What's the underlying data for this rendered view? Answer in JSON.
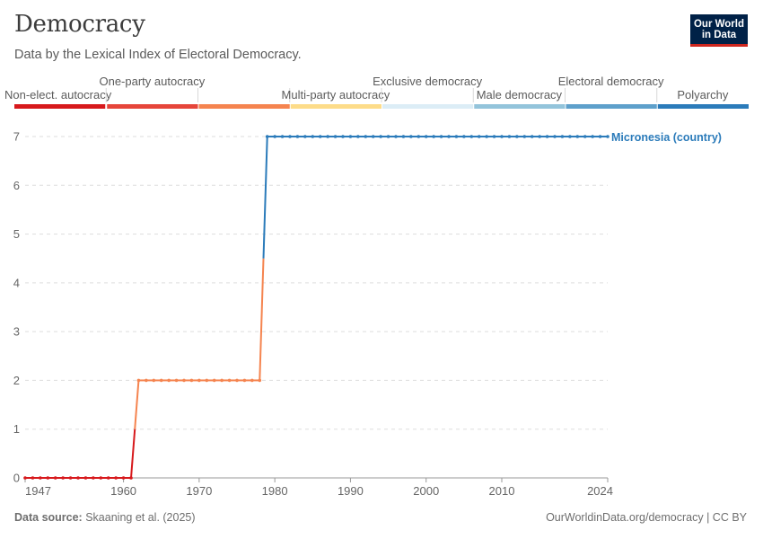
{
  "header": {
    "title": "Democracy",
    "subtitle": "Data by the Lexical Index of Electoral Democracy."
  },
  "logo": {
    "line1": "Our World",
    "line2": "in Data"
  },
  "footer": {
    "source_label": "Data source:",
    "source_text": "Skaaning et al. (2025)",
    "right_text": "OurWorldinData.org/democracy | CC BY"
  },
  "legend": {
    "categories": [
      {
        "label": "Non-elect. autocracy",
        "color": "#d7191c",
        "row": "lower"
      },
      {
        "label": "One-party autocracy",
        "color": "#e6453a",
        "row": "upper"
      },
      {
        "label": "",
        "color": "#f5844f",
        "row": "none"
      },
      {
        "label": "Multi-party autocracy",
        "color": "#fddc89",
        "row": "lower"
      },
      {
        "label": "Exclusive democracy",
        "color": "#dcedf6",
        "row": "upper"
      },
      {
        "label": "Male democracy",
        "color": "#93c4db",
        "row": "lower"
      },
      {
        "label": "Electoral democracy",
        "color": "#5ea0cb",
        "row": "upper"
      },
      {
        "label": "Polyarchy",
        "color": "#2b7bba",
        "row": "lower"
      }
    ]
  },
  "chart_data": {
    "type": "line",
    "title": "Democracy",
    "subtitle": "Data by the Lexical Index of Electoral Democracy.",
    "xlim": [
      1947,
      2024
    ],
    "ylim": [
      0,
      7
    ],
    "x_ticks": [
      1947,
      1960,
      1970,
      1980,
      1990,
      2000,
      2010,
      2024
    ],
    "y_ticks": [
      0,
      1,
      2,
      3,
      4,
      5,
      6,
      7
    ],
    "grid": "horizontal dashed",
    "series": [
      {
        "name": "Micronesia (country)",
        "color": "#2b7bba",
        "points": [
          {
            "x": 1947,
            "y": 0
          },
          {
            "x": 1948,
            "y": 0
          },
          {
            "x": 1949,
            "y": 0
          },
          {
            "x": 1950,
            "y": 0
          },
          {
            "x": 1951,
            "y": 0
          },
          {
            "x": 1952,
            "y": 0
          },
          {
            "x": 1953,
            "y": 0
          },
          {
            "x": 1954,
            "y": 0
          },
          {
            "x": 1955,
            "y": 0
          },
          {
            "x": 1956,
            "y": 0
          },
          {
            "x": 1957,
            "y": 0
          },
          {
            "x": 1958,
            "y": 0
          },
          {
            "x": 1959,
            "y": 0
          },
          {
            "x": 1960,
            "y": 0
          },
          {
            "x": 1961,
            "y": 0
          },
          {
            "x": 1962,
            "y": 2
          },
          {
            "x": 1963,
            "y": 2
          },
          {
            "x": 1964,
            "y": 2
          },
          {
            "x": 1965,
            "y": 2
          },
          {
            "x": 1966,
            "y": 2
          },
          {
            "x": 1967,
            "y": 2
          },
          {
            "x": 1968,
            "y": 2
          },
          {
            "x": 1969,
            "y": 2
          },
          {
            "x": 1970,
            "y": 2
          },
          {
            "x": 1971,
            "y": 2
          },
          {
            "x": 1972,
            "y": 2
          },
          {
            "x": 1973,
            "y": 2
          },
          {
            "x": 1974,
            "y": 2
          },
          {
            "x": 1975,
            "y": 2
          },
          {
            "x": 1976,
            "y": 2
          },
          {
            "x": 1977,
            "y": 2
          },
          {
            "x": 1978,
            "y": 2
          },
          {
            "x": 1979,
            "y": 7
          },
          {
            "x": 1980,
            "y": 7
          },
          {
            "x": 1981,
            "y": 7
          },
          {
            "x": 1982,
            "y": 7
          },
          {
            "x": 1983,
            "y": 7
          },
          {
            "x": 1984,
            "y": 7
          },
          {
            "x": 1985,
            "y": 7
          },
          {
            "x": 1986,
            "y": 7
          },
          {
            "x": 1987,
            "y": 7
          },
          {
            "x": 1988,
            "y": 7
          },
          {
            "x": 1989,
            "y": 7
          },
          {
            "x": 1990,
            "y": 7
          },
          {
            "x": 1991,
            "y": 7
          },
          {
            "x": 1992,
            "y": 7
          },
          {
            "x": 1993,
            "y": 7
          },
          {
            "x": 1994,
            "y": 7
          },
          {
            "x": 1995,
            "y": 7
          },
          {
            "x": 1996,
            "y": 7
          },
          {
            "x": 1997,
            "y": 7
          },
          {
            "x": 1998,
            "y": 7
          },
          {
            "x": 1999,
            "y": 7
          },
          {
            "x": 2000,
            "y": 7
          },
          {
            "x": 2001,
            "y": 7
          },
          {
            "x": 2002,
            "y": 7
          },
          {
            "x": 2003,
            "y": 7
          },
          {
            "x": 2004,
            "y": 7
          },
          {
            "x": 2005,
            "y": 7
          },
          {
            "x": 2006,
            "y": 7
          },
          {
            "x": 2007,
            "y": 7
          },
          {
            "x": 2008,
            "y": 7
          },
          {
            "x": 2009,
            "y": 7
          },
          {
            "x": 2010,
            "y": 7
          },
          {
            "x": 2011,
            "y": 7
          },
          {
            "x": 2012,
            "y": 7
          },
          {
            "x": 2013,
            "y": 7
          },
          {
            "x": 2014,
            "y": 7
          },
          {
            "x": 2015,
            "y": 7
          },
          {
            "x": 2016,
            "y": 7
          },
          {
            "x": 2017,
            "y": 7
          },
          {
            "x": 2018,
            "y": 7
          },
          {
            "x": 2019,
            "y": 7
          },
          {
            "x": 2020,
            "y": 7
          },
          {
            "x": 2021,
            "y": 7
          },
          {
            "x": 2022,
            "y": 7
          },
          {
            "x": 2023,
            "y": 7
          },
          {
            "x": 2024,
            "y": 7
          }
        ]
      }
    ]
  }
}
